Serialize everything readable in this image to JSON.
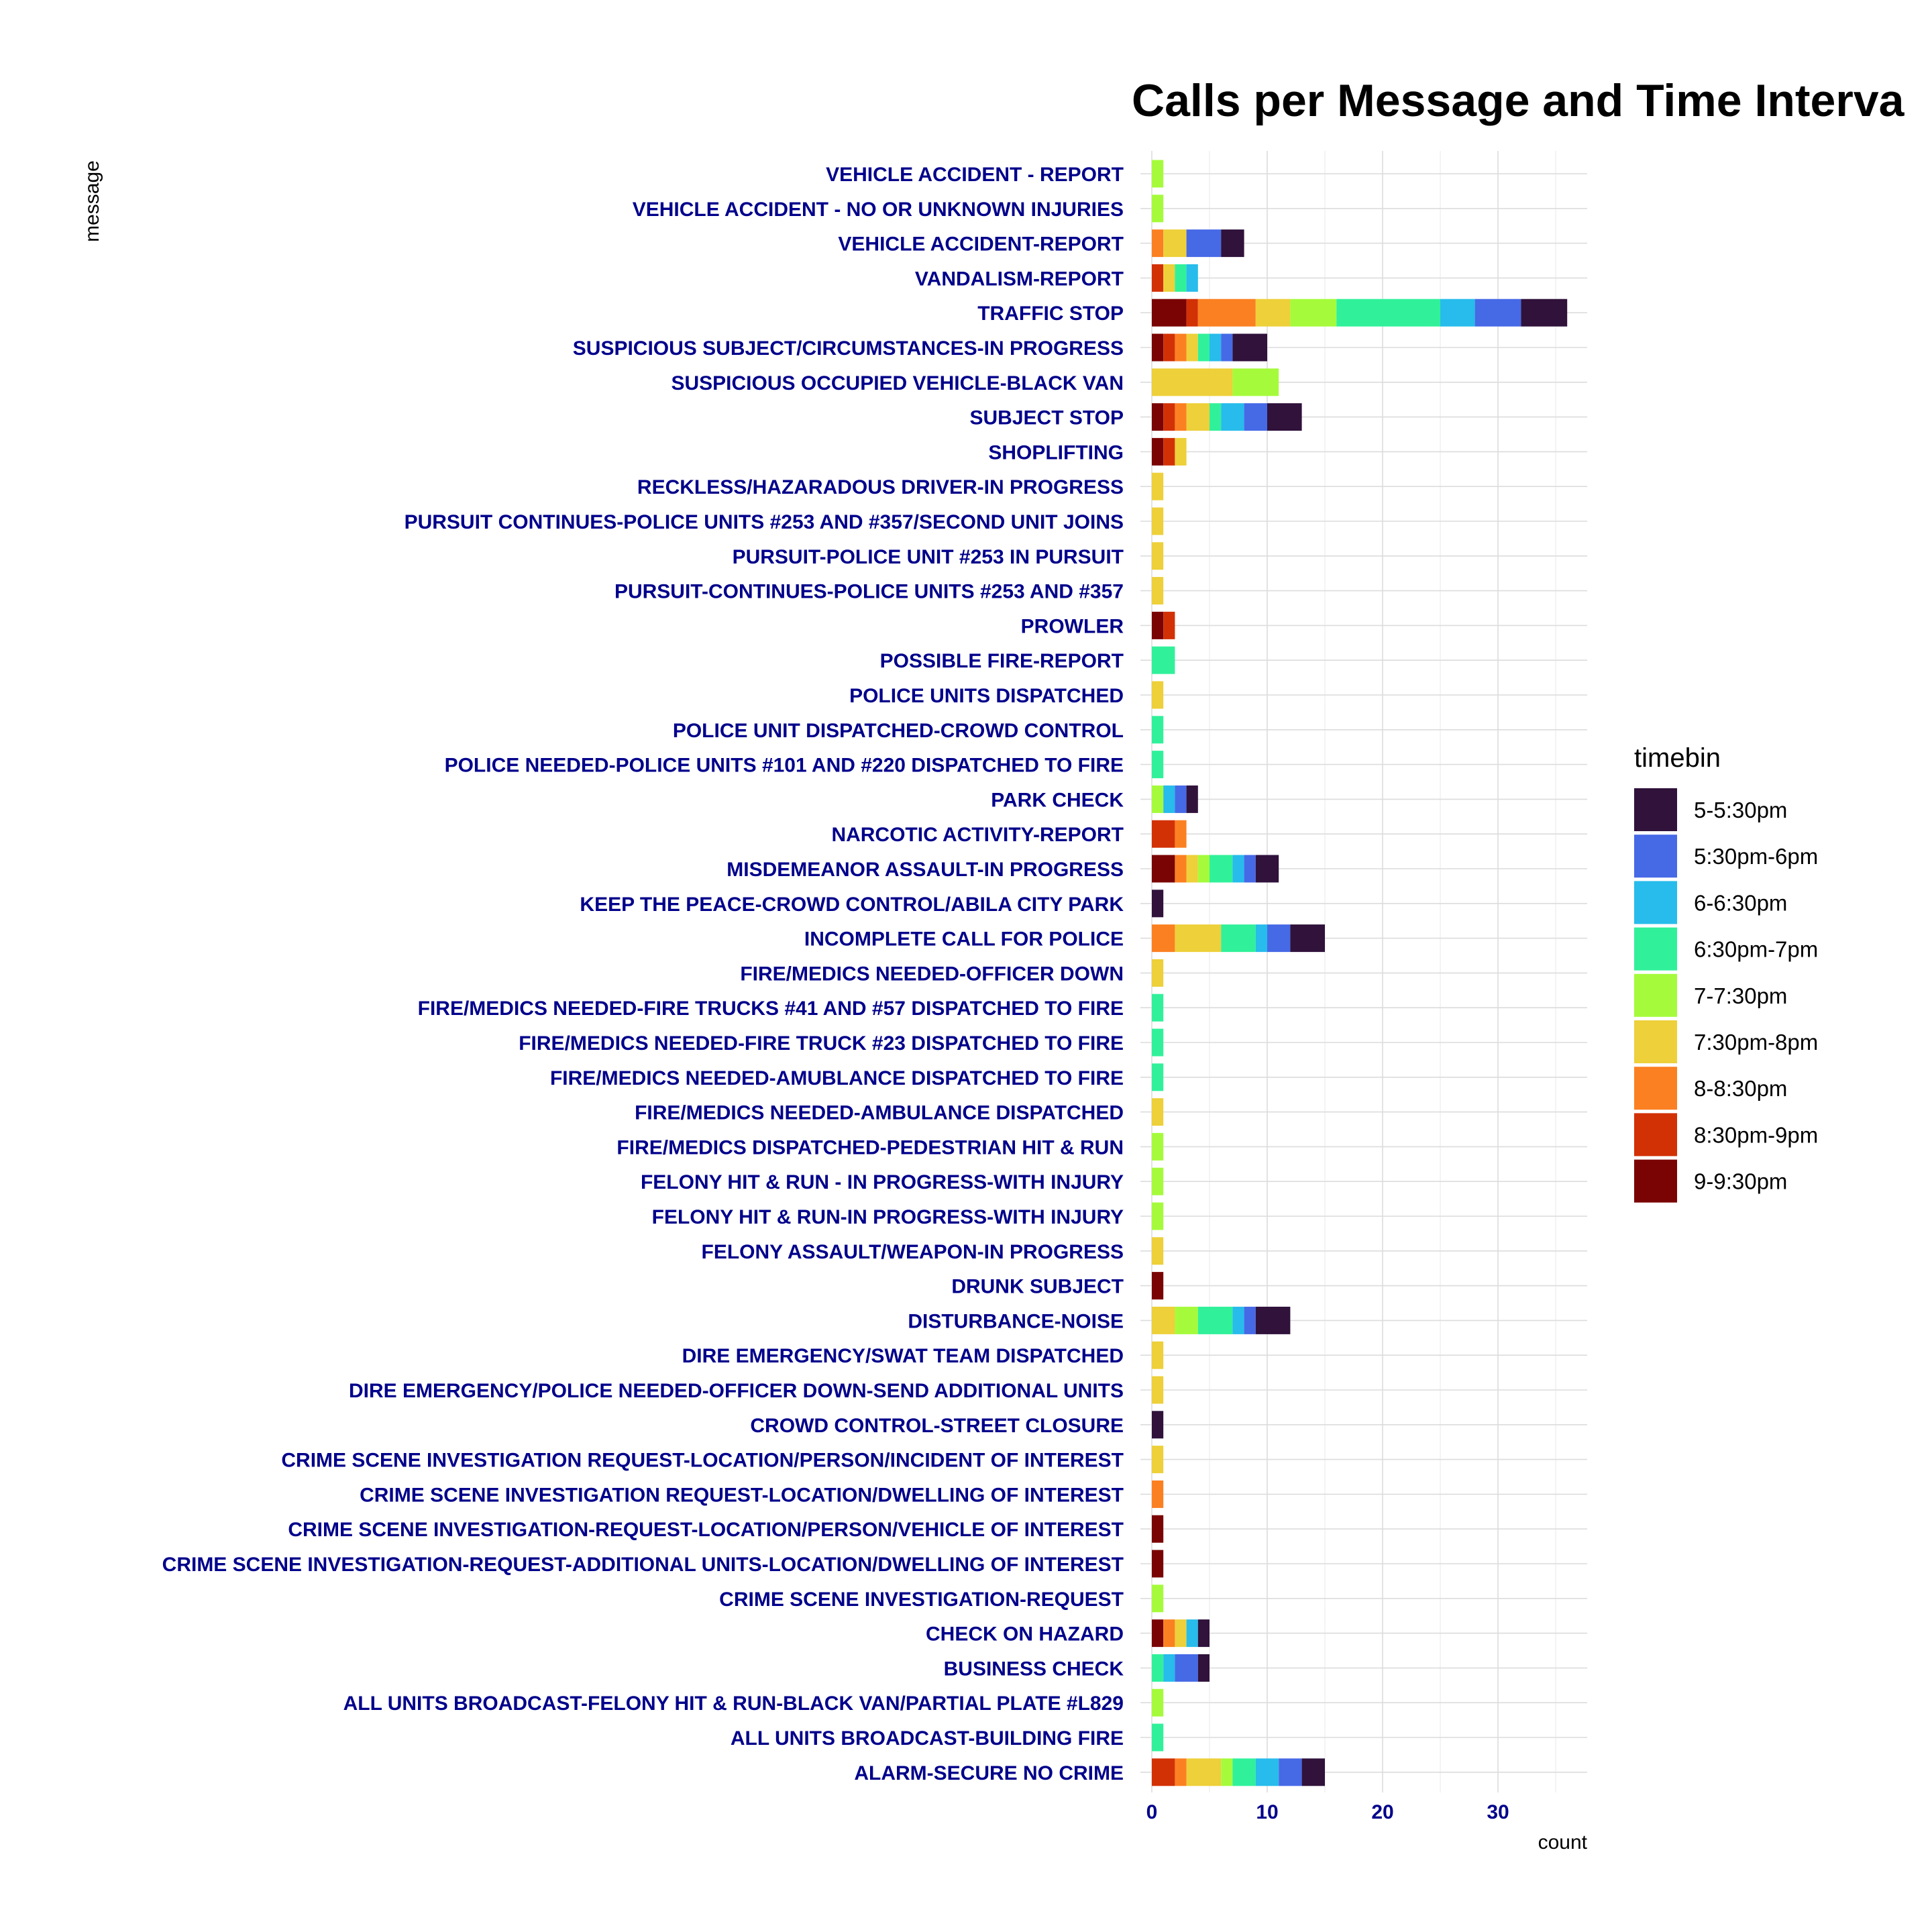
{
  "chart_data": {
    "type": "bar",
    "orientation": "horizontal",
    "stacked": true,
    "title": "Calls per Message and Time Interva",
    "xlabel": "count",
    "ylabel": "message",
    "xlim": [
      0,
      37.5
    ],
    "xticks": [
      0,
      10,
      20,
      30
    ],
    "grid": true,
    "legend_position": "right",
    "legend_title": "timebin",
    "series_order": [
      "9-9:30pm",
      "8:30pm-9pm",
      "8-8:30pm",
      "7:30pm-8pm",
      "7-7:30pm",
      "6:30pm-7pm",
      "6-6:30pm",
      "5:30pm-6pm",
      "5-5:30pm"
    ],
    "legend_order": [
      "5-5:30pm",
      "5:30pm-6pm",
      "6-6:30pm",
      "6:30pm-7pm",
      "7-7:30pm",
      "7:30pm-8pm",
      "8-8:30pm",
      "8:30pm-9pm",
      "9-9:30pm"
    ],
    "colors": {
      "5-5:30pm": "#30123B",
      "5:30pm-6pm": "#4669E6",
      "6-6:30pm": "#27BCEB",
      "6:30pm-7pm": "#30F19A",
      "7-7:30pm": "#A5FB3B",
      "7:30pm-8pm": "#EDD03A",
      "8-8:30pm": "#FB8022",
      "8:30pm-9pm": "#D23105",
      "9-9:30pm": "#7A0403"
    },
    "categories": [
      "VEHICLE ACCIDENT - REPORT",
      "VEHICLE ACCIDENT - NO OR UNKNOWN INJURIES",
      "VEHICLE ACCIDENT-REPORT",
      "VANDALISM-REPORT",
      "TRAFFIC STOP",
      "SUSPICIOUS SUBJECT/CIRCUMSTANCES-IN PROGRESS",
      "SUSPICIOUS OCCUPIED VEHICLE-BLACK VAN",
      "SUBJECT STOP",
      "SHOPLIFTING",
      "RECKLESS/HAZARADOUS DRIVER-IN PROGRESS",
      "PURSUIT CONTINUES-POLICE UNITS #253 AND #357/SECOND UNIT JOINS",
      "PURSUIT-POLICE UNIT #253 IN PURSUIT",
      "PURSUIT-CONTINUES-POLICE UNITS #253 AND #357",
      "PROWLER",
      "POSSIBLE FIRE-REPORT",
      "POLICE UNITS DISPATCHED",
      "POLICE UNIT DISPATCHED-CROWD CONTROL",
      "POLICE NEEDED-POLICE UNITS #101 AND #220 DISPATCHED TO FIRE",
      "PARK CHECK",
      "NARCOTIC ACTIVITY-REPORT",
      "MISDEMEANOR ASSAULT-IN PROGRESS",
      "KEEP THE PEACE-CROWD CONTROL/ABILA CITY PARK",
      "INCOMPLETE CALL FOR POLICE",
      "FIRE/MEDICS NEEDED-OFFICER DOWN",
      "FIRE/MEDICS NEEDED-FIRE TRUCKS #41 AND #57 DISPATCHED TO FIRE",
      "FIRE/MEDICS NEEDED-FIRE TRUCK #23 DISPATCHED TO FIRE",
      "FIRE/MEDICS NEEDED-AMUBLANCE DISPATCHED TO FIRE",
      "FIRE/MEDICS NEEDED-AMBULANCE DISPATCHED",
      "FIRE/MEDICS DISPATCHED-PEDESTRIAN HIT & RUN",
      "FELONY HIT & RUN - IN PROGRESS-WITH INJURY",
      "FELONY HIT & RUN-IN PROGRESS-WITH INJURY",
      "FELONY ASSAULT/WEAPON-IN PROGRESS",
      "DRUNK SUBJECT",
      "DISTURBANCE-NOISE",
      "DIRE EMERGENCY/SWAT TEAM DISPATCHED",
      "DIRE EMERGENCY/POLICE NEEDED-OFFICER DOWN-SEND ADDITIONAL UNITS",
      "CROWD CONTROL-STREET CLOSURE",
      "CRIME SCENE INVESTIGATION REQUEST-LOCATION/PERSON/INCIDENT OF INTEREST",
      "CRIME SCENE INVESTIGATION REQUEST-LOCATION/DWELLING OF INTEREST",
      "CRIME SCENE INVESTIGATION-REQUEST-LOCATION/PERSON/VEHICLE OF INTEREST",
      "CRIME SCENE INVESTIGATION-REQUEST-ADDITIONAL UNITS-LOCATION/DWELLING OF INTEREST",
      "CRIME SCENE INVESTIGATION-REQUEST",
      "CHECK ON HAZARD",
      "BUSINESS CHECK",
      "ALL UNITS BROADCAST-FELONY HIT & RUN-BLACK VAN/PARTIAL PLATE #L829",
      "ALL UNITS BROADCAST-BUILDING FIRE",
      "ALARM-SECURE NO CRIME"
    ],
    "series": [
      {
        "name": "9-9:30pm",
        "values": [
          0,
          0,
          0,
          0,
          3,
          1,
          0,
          1,
          1,
          0,
          0,
          0,
          0,
          1,
          0,
          0,
          0,
          0,
          0,
          0,
          2,
          0,
          0,
          0,
          0,
          0,
          0,
          0,
          0,
          0,
          0,
          0,
          1,
          0,
          0,
          0,
          0,
          0,
          0,
          1,
          1,
          0,
          1,
          0,
          0,
          0,
          0
        ]
      },
      {
        "name": "8:30pm-9pm",
        "values": [
          0,
          0,
          0,
          1,
          1,
          1,
          0,
          1,
          1,
          0,
          0,
          0,
          0,
          1,
          0,
          0,
          0,
          0,
          0,
          2,
          0,
          0,
          0,
          0,
          0,
          0,
          0,
          0,
          0,
          0,
          0,
          0,
          0,
          0,
          0,
          0,
          0,
          0,
          0,
          0,
          0,
          0,
          0,
          0,
          0,
          0,
          2
        ]
      },
      {
        "name": "8-8:30pm",
        "values": [
          0,
          0,
          1,
          0,
          5,
          1,
          0,
          1,
          0,
          0,
          0,
          0,
          0,
          0,
          0,
          0,
          0,
          0,
          0,
          1,
          1,
          0,
          2,
          0,
          0,
          0,
          0,
          0,
          0,
          0,
          0,
          0,
          0,
          0,
          0,
          0,
          0,
          0,
          1,
          0,
          0,
          0,
          1,
          0,
          0,
          0,
          1
        ]
      },
      {
        "name": "7:30pm-8pm",
        "values": [
          0,
          0,
          2,
          1,
          3,
          1,
          7,
          2,
          1,
          1,
          1,
          1,
          1,
          0,
          0,
          1,
          0,
          0,
          0,
          0,
          1,
          0,
          4,
          1,
          0,
          0,
          0,
          1,
          0,
          0,
          0,
          1,
          0,
          2,
          1,
          1,
          0,
          1,
          0,
          0,
          0,
          0,
          1,
          0,
          0,
          0,
          3
        ]
      },
      {
        "name": "7-7:30pm",
        "values": [
          1,
          1,
          0,
          0,
          4,
          0,
          4,
          0,
          0,
          0,
          0,
          0,
          0,
          0,
          0,
          0,
          0,
          0,
          1,
          0,
          1,
          0,
          0,
          0,
          0,
          0,
          0,
          0,
          1,
          1,
          1,
          0,
          0,
          2,
          0,
          0,
          0,
          0,
          0,
          0,
          0,
          1,
          0,
          0,
          1,
          0,
          1
        ]
      },
      {
        "name": "6:30pm-7pm",
        "values": [
          0,
          0,
          0,
          1,
          9,
          1,
          0,
          1,
          0,
          0,
          0,
          0,
          0,
          0,
          2,
          0,
          1,
          1,
          0,
          0,
          2,
          0,
          3,
          0,
          1,
          1,
          1,
          0,
          0,
          0,
          0,
          0,
          0,
          3,
          0,
          0,
          0,
          0,
          0,
          0,
          0,
          0,
          0,
          1,
          0,
          1,
          2
        ]
      },
      {
        "name": "6-6:30pm",
        "values": [
          0,
          0,
          0,
          1,
          3,
          1,
          0,
          2,
          0,
          0,
          0,
          0,
          0,
          0,
          0,
          0,
          0,
          0,
          1,
          0,
          1,
          0,
          1,
          0,
          0,
          0,
          0,
          0,
          0,
          0,
          0,
          0,
          0,
          1,
          0,
          0,
          0,
          0,
          0,
          0,
          0,
          0,
          1,
          1,
          0,
          0,
          2
        ]
      },
      {
        "name": "5:30pm-6pm",
        "values": [
          0,
          0,
          3,
          0,
          4,
          1,
          0,
          2,
          0,
          0,
          0,
          0,
          0,
          0,
          0,
          0,
          0,
          0,
          1,
          0,
          1,
          0,
          2,
          0,
          0,
          0,
          0,
          0,
          0,
          0,
          0,
          0,
          0,
          1,
          0,
          0,
          0,
          0,
          0,
          0,
          0,
          0,
          0,
          2,
          0,
          0,
          2
        ]
      },
      {
        "name": "5-5:30pm",
        "values": [
          0,
          0,
          2,
          0,
          4,
          3,
          0,
          3,
          0,
          0,
          0,
          0,
          0,
          0,
          0,
          0,
          0,
          0,
          1,
          0,
          2,
          1,
          3,
          0,
          0,
          0,
          0,
          0,
          0,
          0,
          0,
          0,
          0,
          3,
          0,
          0,
          1,
          0,
          0,
          0,
          0,
          0,
          1,
          1,
          0,
          0,
          2
        ]
      }
    ]
  }
}
